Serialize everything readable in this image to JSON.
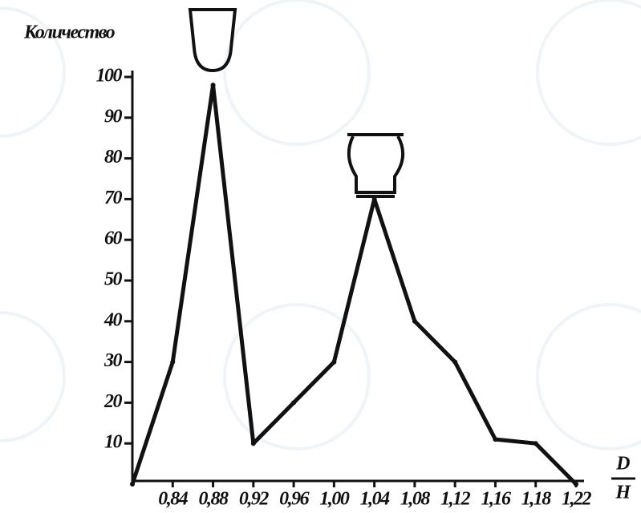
{
  "chart_data": {
    "type": "line",
    "y_label": "Количество",
    "x_label_numerator": "D",
    "x_label_denominator": "H",
    "categories": [
      null,
      "0,84",
      "0,88",
      "0,92",
      "0,96",
      "1,00",
      "1,04",
      "1,08",
      "1,12",
      "1,16",
      "1,18",
      "1,22"
    ],
    "values": [
      0,
      30,
      98,
      10,
      20,
      30,
      70,
      40,
      30,
      11,
      10,
      0
    ],
    "color": "#111111",
    "ylim": [
      0,
      100
    ],
    "yticks": [
      10,
      20,
      30,
      40,
      50,
      60,
      70,
      80,
      90,
      100
    ]
  }
}
